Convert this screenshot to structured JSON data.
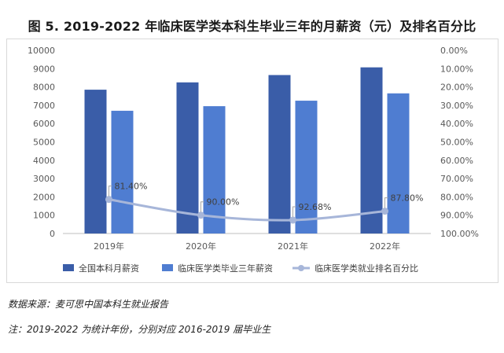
{
  "title": "图 5. 2019-2022 年临床医学类本科生毕业三年的月薪资（元）及排名百分比",
  "source_note": "数据来源：麦可思中国本科生就业报告",
  "footnote": "注：2019-2022 为统计年份，分别对应 2016-2019 届毕业生",
  "colors": {
    "national_bar": "#3a5da8",
    "clinical_bar": "#4f7dd1",
    "rank_line": "#a7b6d9",
    "axis_text": "#595959",
    "grid": "#d9d9d9"
  },
  "chart_data": {
    "type": "bar",
    "categories": [
      "2019年",
      "2020年",
      "2021年",
      "2022年"
    ],
    "series": [
      {
        "name": "全国本科月薪资",
        "type": "bar",
        "axis": "left",
        "values": [
          7850,
          8250,
          8650,
          9070
        ]
      },
      {
        "name": "临床医学类毕业三年薪资",
        "type": "bar",
        "axis": "left",
        "values": [
          6700,
          6950,
          7250,
          7650
        ]
      },
      {
        "name": "临床医学类就业排名百分比",
        "type": "line",
        "axis": "right",
        "smooth": true,
        "values": [
          81.4,
          90.0,
          92.68,
          87.8
        ],
        "labels": [
          "81.40%",
          "90.00%",
          "92.68%",
          "87.80%"
        ]
      }
    ],
    "y_left": {
      "min": 0,
      "max": 10000,
      "step": 1000,
      "ticks": [
        "0",
        "1000",
        "2000",
        "3000",
        "4000",
        "5000",
        "6000",
        "7000",
        "8000",
        "9000",
        "10000"
      ]
    },
    "y_right": {
      "min": 0,
      "max": 100,
      "step": 10,
      "reversed": true,
      "ticks": [
        "0.00%",
        "10.00%",
        "20.00%",
        "30.00%",
        "40.00%",
        "50.00%",
        "60.00%",
        "70.00%",
        "80.00%",
        "90.00%",
        "100.00%"
      ]
    },
    "grid": false,
    "legend_position": "bottom"
  }
}
